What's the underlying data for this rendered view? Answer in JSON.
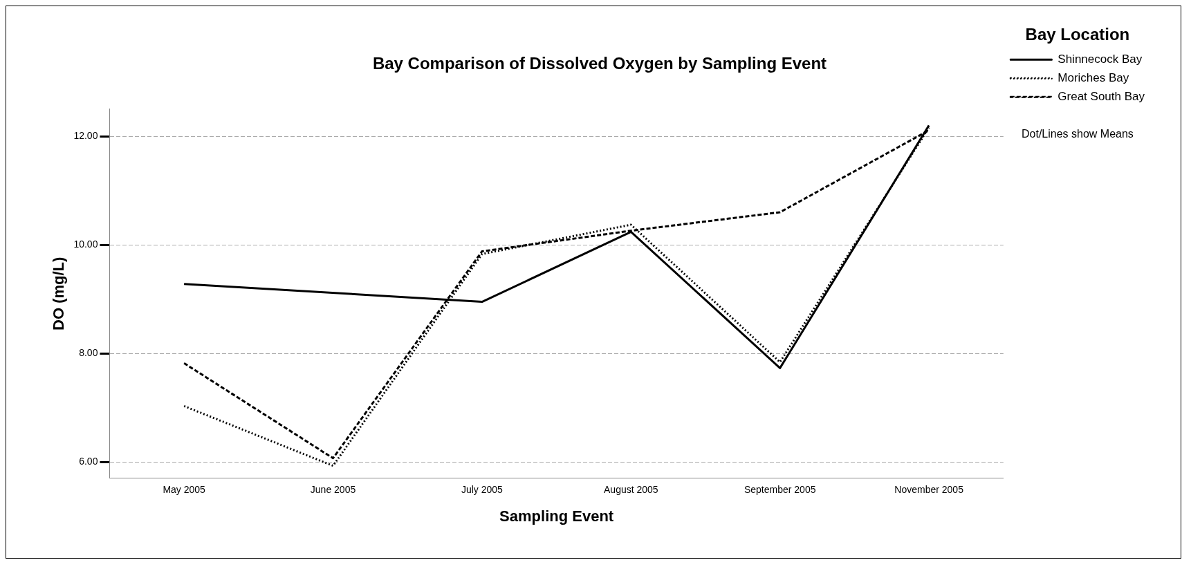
{
  "chart_data": {
    "type": "line",
    "title": "Bay Comparison of Dissolved Oxygen by Sampling Event",
    "xlabel": "Sampling Event",
    "ylabel": "DO (mg/L)",
    "legend_title": "Bay Location",
    "annotations": [
      "Dot/Lines show Means"
    ],
    "categories": [
      "May 2005",
      "June 2005",
      "July 2005",
      "August 2005",
      "September 2005",
      "November 2005"
    ],
    "series": [
      {
        "name": "Shinnecock Bay",
        "color": "#000000",
        "line_style": "solid",
        "values": [
          9.28,
          null,
          8.95,
          10.24,
          7.73,
          12.2
        ]
      },
      {
        "name": "Moriches Bay",
        "color": "#000000",
        "line_style": "dotted",
        "values": [
          7.03,
          5.93,
          9.83,
          10.37,
          7.84,
          12.16
        ]
      },
      {
        "name": "Great South Bay",
        "color": "#000000",
        "line_style": "dashed",
        "values": [
          7.82,
          6.07,
          9.88,
          10.26,
          10.6,
          12.11
        ]
      }
    ],
    "ylim": [
      5.7,
      12.5
    ],
    "yticks": [
      {
        "value": 6,
        "label": "6.00"
      },
      {
        "value": 8,
        "label": "8.00"
      },
      {
        "value": 10,
        "label": "10.00"
      },
      {
        "value": 12,
        "label": "12.00"
      }
    ],
    "grid": "y",
    "legend": "right"
  }
}
